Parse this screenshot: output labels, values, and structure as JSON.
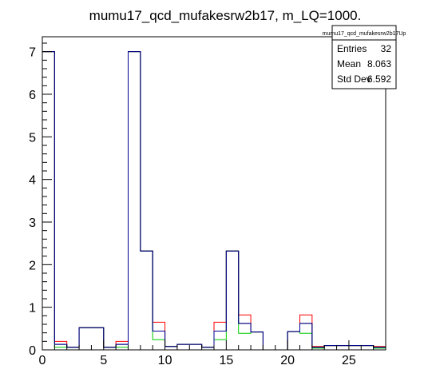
{
  "chart_data": {
    "type": "histogram",
    "title": "mumu17_qcd_mufakesrw2b17, m_LQ=1000.",
    "xlabel": "",
    "ylabel": "",
    "xlim": [
      0,
      28
    ],
    "ylim": [
      0,
      7.35
    ],
    "bin_edges": [
      0,
      1,
      2,
      3,
      4,
      5,
      6,
      7,
      8,
      9,
      10,
      11,
      12,
      13,
      14,
      15,
      16,
      17,
      18,
      19,
      20,
      21,
      22,
      23,
      24,
      25,
      26,
      27,
      28
    ],
    "x_ticks": [
      0,
      5,
      10,
      15,
      20,
      25
    ],
    "y_ticks": [
      0,
      1,
      2,
      3,
      4,
      5,
      6,
      7
    ],
    "grid": false,
    "legend": "none",
    "series": [
      {
        "color": "#ff0000",
        "values": [
          7.0,
          0.2,
          0.06,
          0.52,
          0.52,
          0.06,
          0.2,
          7.0,
          2.32,
          0.65,
          0.08,
          0.13,
          0.13,
          0.06,
          0.65,
          2.32,
          0.82,
          0.42,
          0.0,
          0.0,
          0.43,
          0.82,
          0.08,
          0.1,
          0.1,
          0.1,
          0.1,
          0.08
        ]
      },
      {
        "color": "#00cc00",
        "values": [
          7.0,
          0.06,
          0.06,
          0.52,
          0.52,
          0.06,
          0.06,
          7.0,
          2.32,
          0.24,
          0.08,
          0.13,
          0.13,
          0.06,
          0.24,
          2.32,
          0.39,
          0.42,
          0.0,
          0.0,
          0.43,
          0.39,
          0.04,
          0.1,
          0.1,
          0.1,
          0.1,
          0.04
        ]
      },
      {
        "color": "#000000",
        "values": [
          7.0,
          0.13,
          0.06,
          0.52,
          0.52,
          0.06,
          0.13,
          7.0,
          2.32,
          0.44,
          0.08,
          0.13,
          0.13,
          0.06,
          0.44,
          2.32,
          0.62,
          0.42,
          0.0,
          0.0,
          0.43,
          0.62,
          0.06,
          0.1,
          0.1,
          0.1,
          0.1,
          0.06
        ]
      },
      {
        "color": "#000099",
        "values": [
          7.0,
          0.13,
          0.06,
          0.52,
          0.52,
          0.06,
          0.13,
          7.0,
          2.32,
          0.44,
          0.08,
          0.13,
          0.13,
          0.06,
          0.44,
          2.32,
          0.62,
          0.42,
          0.0,
          0.0,
          0.43,
          0.62,
          0.06,
          0.1,
          0.1,
          0.1,
          0.1,
          0.06
        ]
      }
    ]
  },
  "stats_box": {
    "title": "mumu17_qcd_mufakesrw2b17Up",
    "rows": [
      {
        "label": "Entries",
        "value": "32"
      },
      {
        "label": "Mean",
        "value": "8.063"
      },
      {
        "label": "Std Dev",
        "value": "6.592"
      }
    ]
  }
}
